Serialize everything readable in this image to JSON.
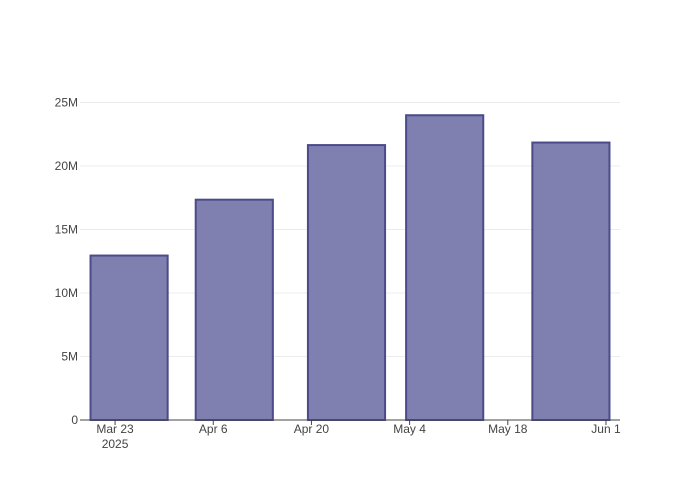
{
  "chart_data": {
    "type": "bar",
    "x": [
      "2025-03-25",
      "2025-04-09",
      "2025-04-25",
      "2025-05-09",
      "2025-05-27"
    ],
    "values": [
      12950000,
      17350000,
      21650000,
      24000000,
      21850000
    ],
    "color": "#7f7fb0",
    "edge_color": "#4b4b8c",
    "xlim": [
      "2025-03-18",
      "2025-06-03"
    ],
    "xticks": [
      {
        "value": "2025-03-23",
        "label": "Mar 23\n2025"
      },
      {
        "value": "2025-04-06",
        "label": "Apr 6"
      },
      {
        "value": "2025-04-20",
        "label": "Apr 20"
      },
      {
        "value": "2025-05-04",
        "label": "May 4"
      },
      {
        "value": "2025-05-18",
        "label": "May 18"
      },
      {
        "value": "2025-06-01",
        "label": "Jun 1"
      }
    ],
    "ylim": [
      0,
      25200000
    ],
    "yticks": [
      0,
      {
        "value": 5000000,
        "label": "5M"
      },
      {
        "value": 10000000,
        "label": "10M"
      },
      {
        "value": 15000000,
        "label": "15M"
      },
      {
        "value": 20000000,
        "label": "20M"
      },
      {
        "value": 25000000,
        "label": "25M"
      }
    ],
    "grid": true
  }
}
